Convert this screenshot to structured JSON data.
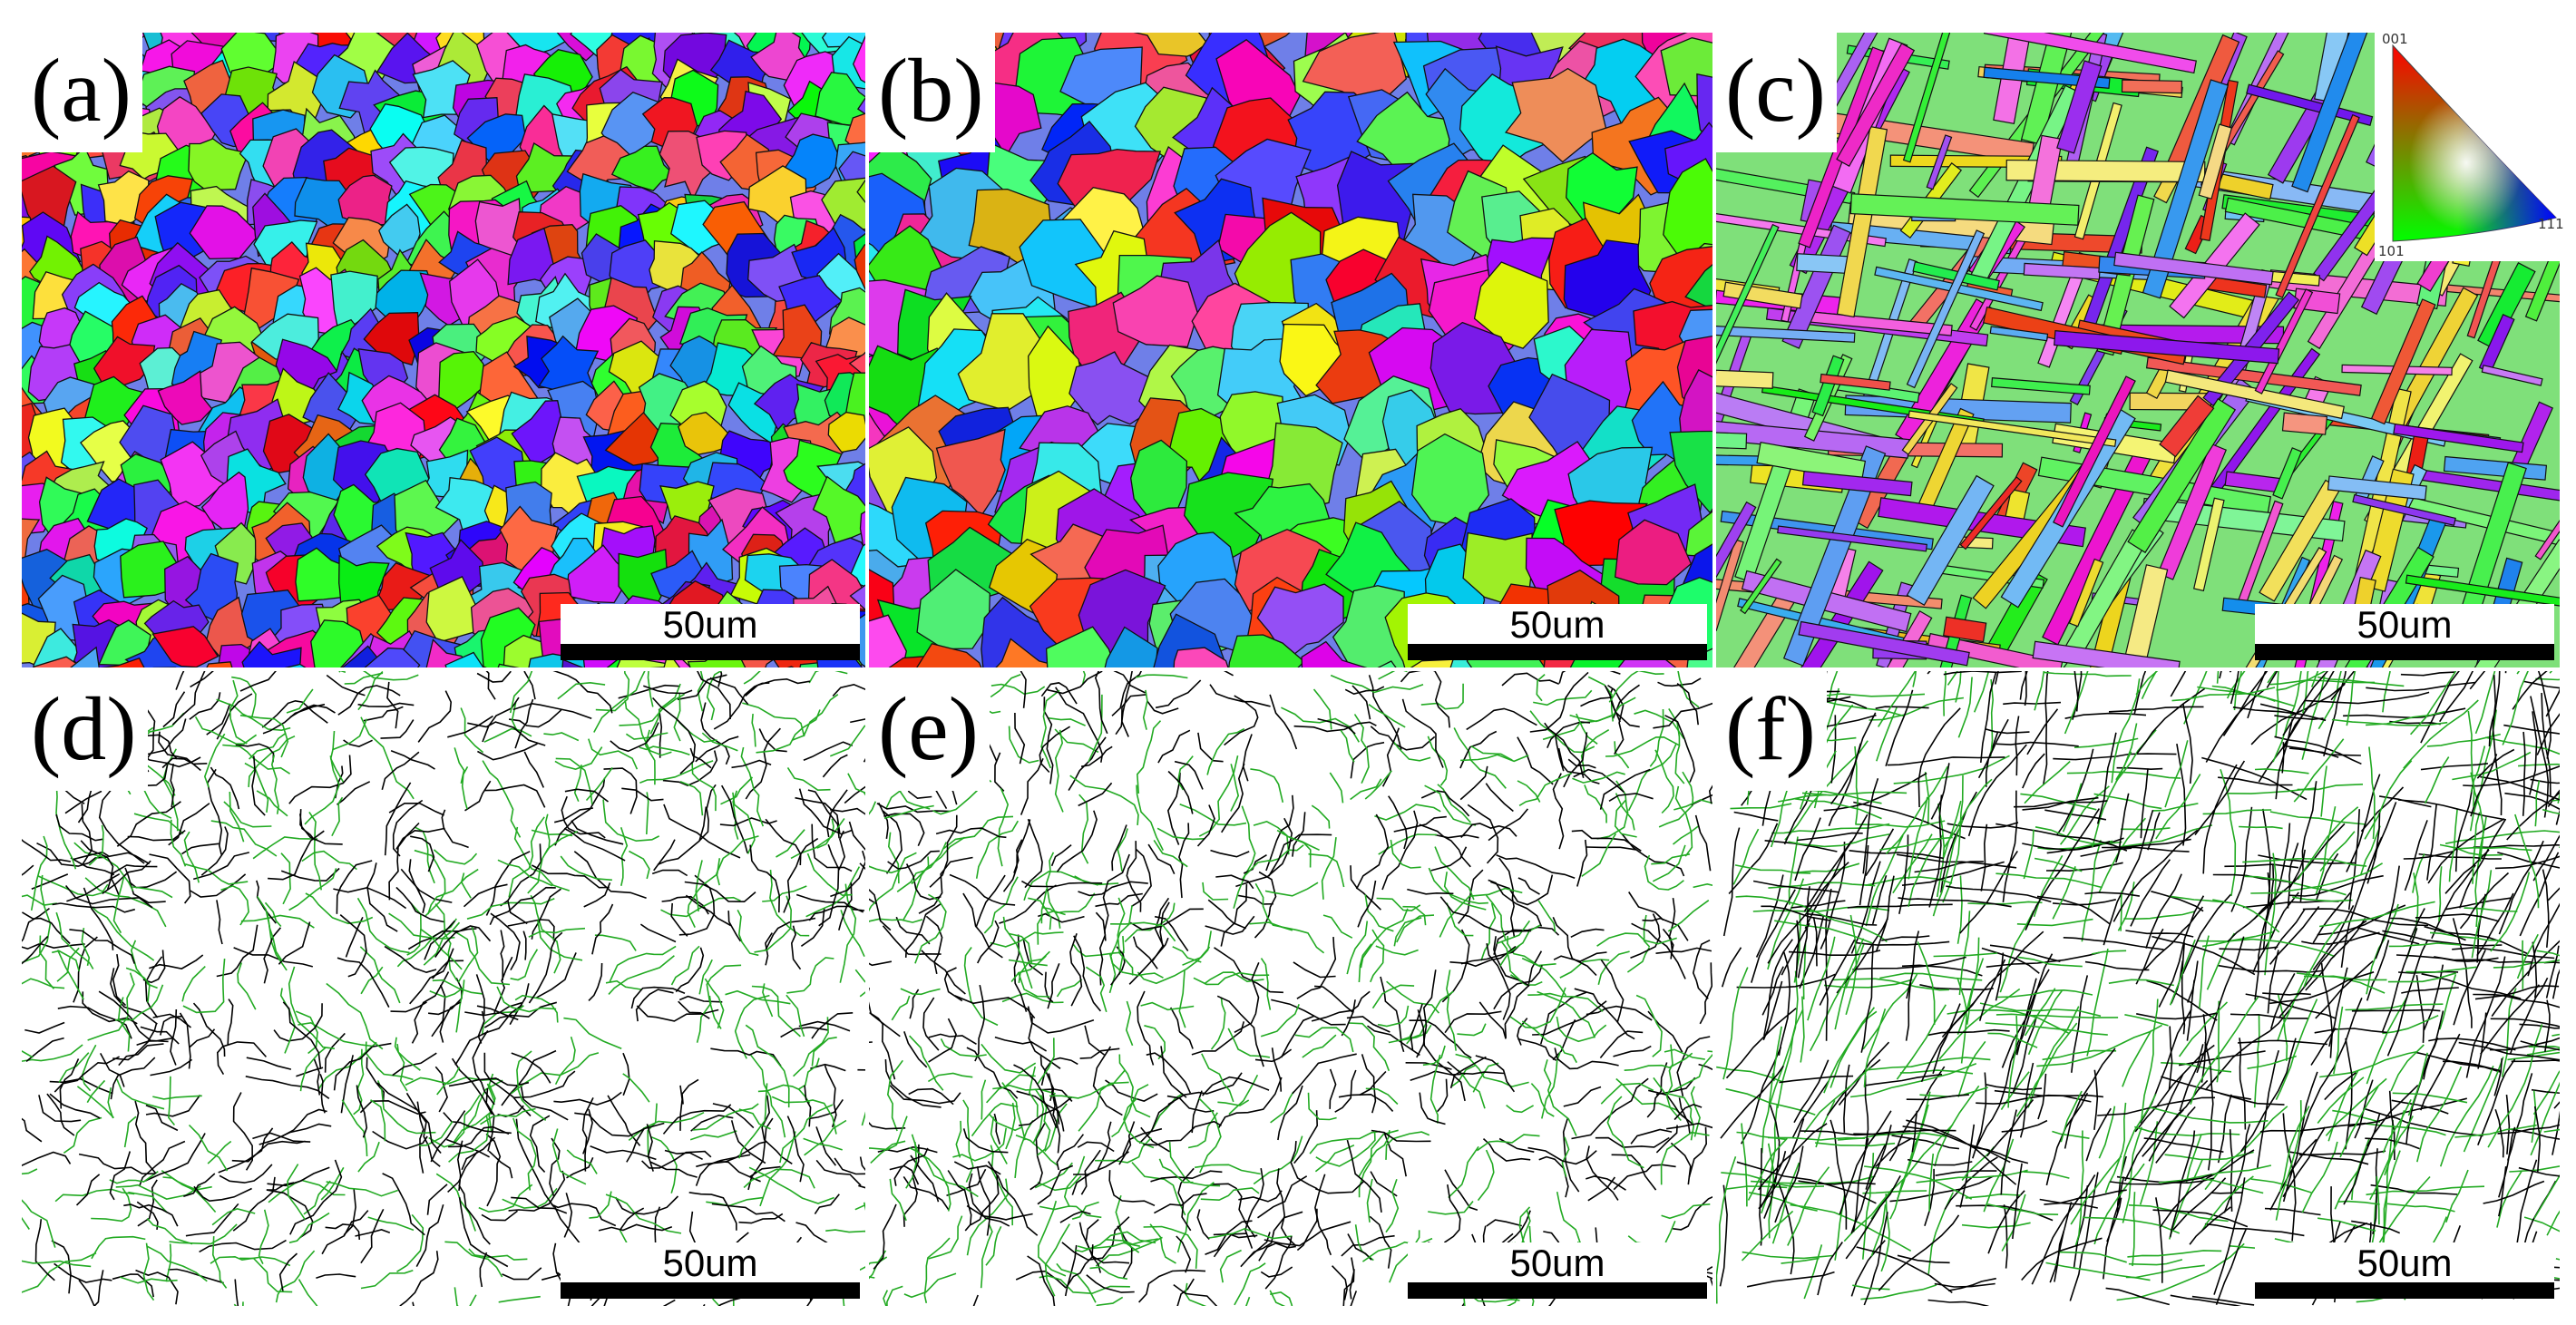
{
  "figure": {
    "panels": [
      {
        "id": "a",
        "label": "(a)",
        "type": "ipf",
        "scale_label": "50um"
      },
      {
        "id": "b",
        "label": "(b)",
        "type": "ipf",
        "scale_label": "50um"
      },
      {
        "id": "c",
        "label": "(c)",
        "type": "ipf",
        "scale_label": "50um"
      },
      {
        "id": "d",
        "label": "(d)",
        "type": "boundary",
        "scale_label": "50um"
      },
      {
        "id": "e",
        "label": "(e)",
        "type": "boundary",
        "scale_label": "50um"
      },
      {
        "id": "f",
        "label": "(f)",
        "type": "boundary",
        "scale_label": "50um"
      }
    ],
    "ipf_legend": {
      "corner_top": "001",
      "corner_bottom_left": "101",
      "corner_bottom_right": "111",
      "colors": {
        "001": "#ff0000",
        "101": "#00ff00",
        "111": "#0000ff"
      }
    },
    "boundary_colors": {
      "high_angle": "#000000",
      "low_angle": "#22aa22"
    }
  }
}
